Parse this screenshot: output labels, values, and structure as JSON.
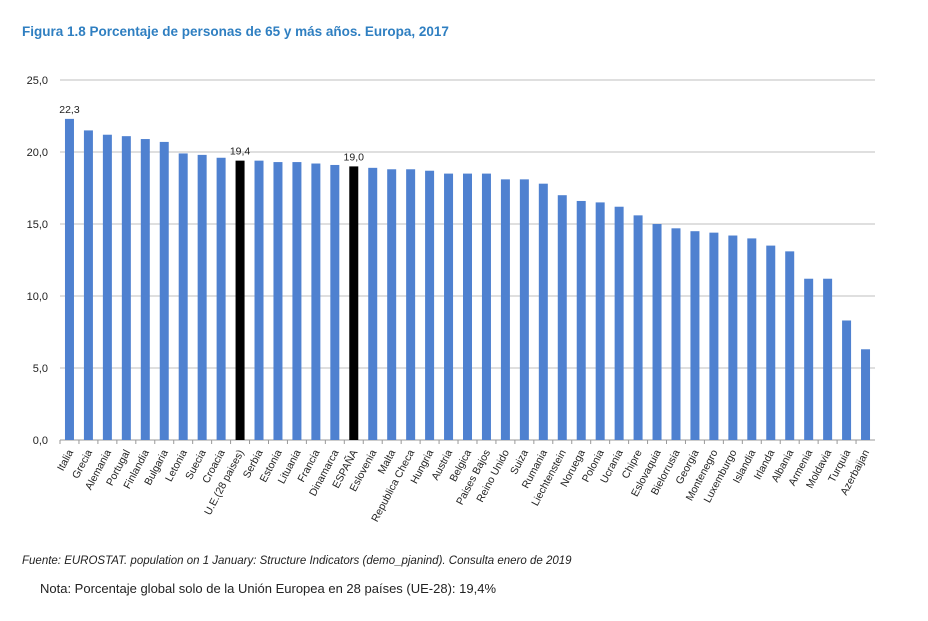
{
  "title": "Figura 1.8  Porcentaje de personas de 65 y más años. Europa, 2017",
  "source": "Fuente: EUROSTAT. population on 1 January: Structure Indicators (demo_pjanind). Consulta enero de 2019",
  "note": "Nota: Porcentaje global solo de la Unión Europea en 28 países (UE-28): 19,4%",
  "chart_data": {
    "type": "bar",
    "title": "Figura 1.8  Porcentaje de personas de 65 y más años. Europa, 2017",
    "xlabel": "",
    "ylabel": "",
    "ylim": [
      0,
      25
    ],
    "yticks": [
      "0,0",
      "5,0",
      "10,0",
      "15,0",
      "20,0",
      "25,0"
    ],
    "grid": true,
    "colors": {
      "default": "#4f81d0",
      "highlight": "#000000",
      "grid": "#bfbfbf"
    },
    "categories": [
      "Italia",
      "Grecia",
      "Alemania",
      "Portugal",
      "Finlandia",
      "Bulgaria",
      "Letonia",
      "Suecia",
      "Croacia",
      "U.E.(28 paises)",
      "Serbia",
      "Estonia",
      "Lituania",
      "Francia",
      "Dinamarca",
      "ESPAÑA",
      "Eslovenia",
      "Malta",
      "Republica Checa",
      "Hungria",
      "Austria",
      "Belgica",
      "Paises Bajos",
      "Reino Unido",
      "Suiza",
      "Rumania",
      "Liechtenstein",
      "Noruega",
      "Polonia",
      "Ucrania",
      "Chipre",
      "Eslovaquia",
      "Bielorrusia",
      "Georgia",
      "Montenegro",
      "Luxemburgo",
      "Islandia",
      "Irlanda",
      "Albania",
      "Armenia",
      "Moldavia",
      "Turquia",
      "Azerbaijan"
    ],
    "values": [
      22.3,
      21.5,
      21.2,
      21.1,
      20.9,
      20.7,
      19.9,
      19.8,
      19.6,
      19.4,
      19.4,
      19.3,
      19.3,
      19.2,
      19.1,
      19.0,
      18.9,
      18.8,
      18.8,
      18.7,
      18.5,
      18.5,
      18.5,
      18.1,
      18.1,
      17.8,
      17.0,
      16.6,
      16.5,
      16.2,
      15.6,
      15.0,
      14.7,
      14.5,
      14.4,
      14.2,
      14.0,
      13.5,
      13.1,
      11.2,
      11.2,
      8.3,
      6.3
    ],
    "highlighted": [
      "U.E.(28 paises)",
      "ESPAÑA"
    ],
    "data_labels": [
      {
        "category": "Italia",
        "text": "22,3"
      },
      {
        "category": "U.E.(28 paises)",
        "text": "19,4"
      },
      {
        "category": "ESPAÑA",
        "text": "19,0"
      }
    ]
  }
}
